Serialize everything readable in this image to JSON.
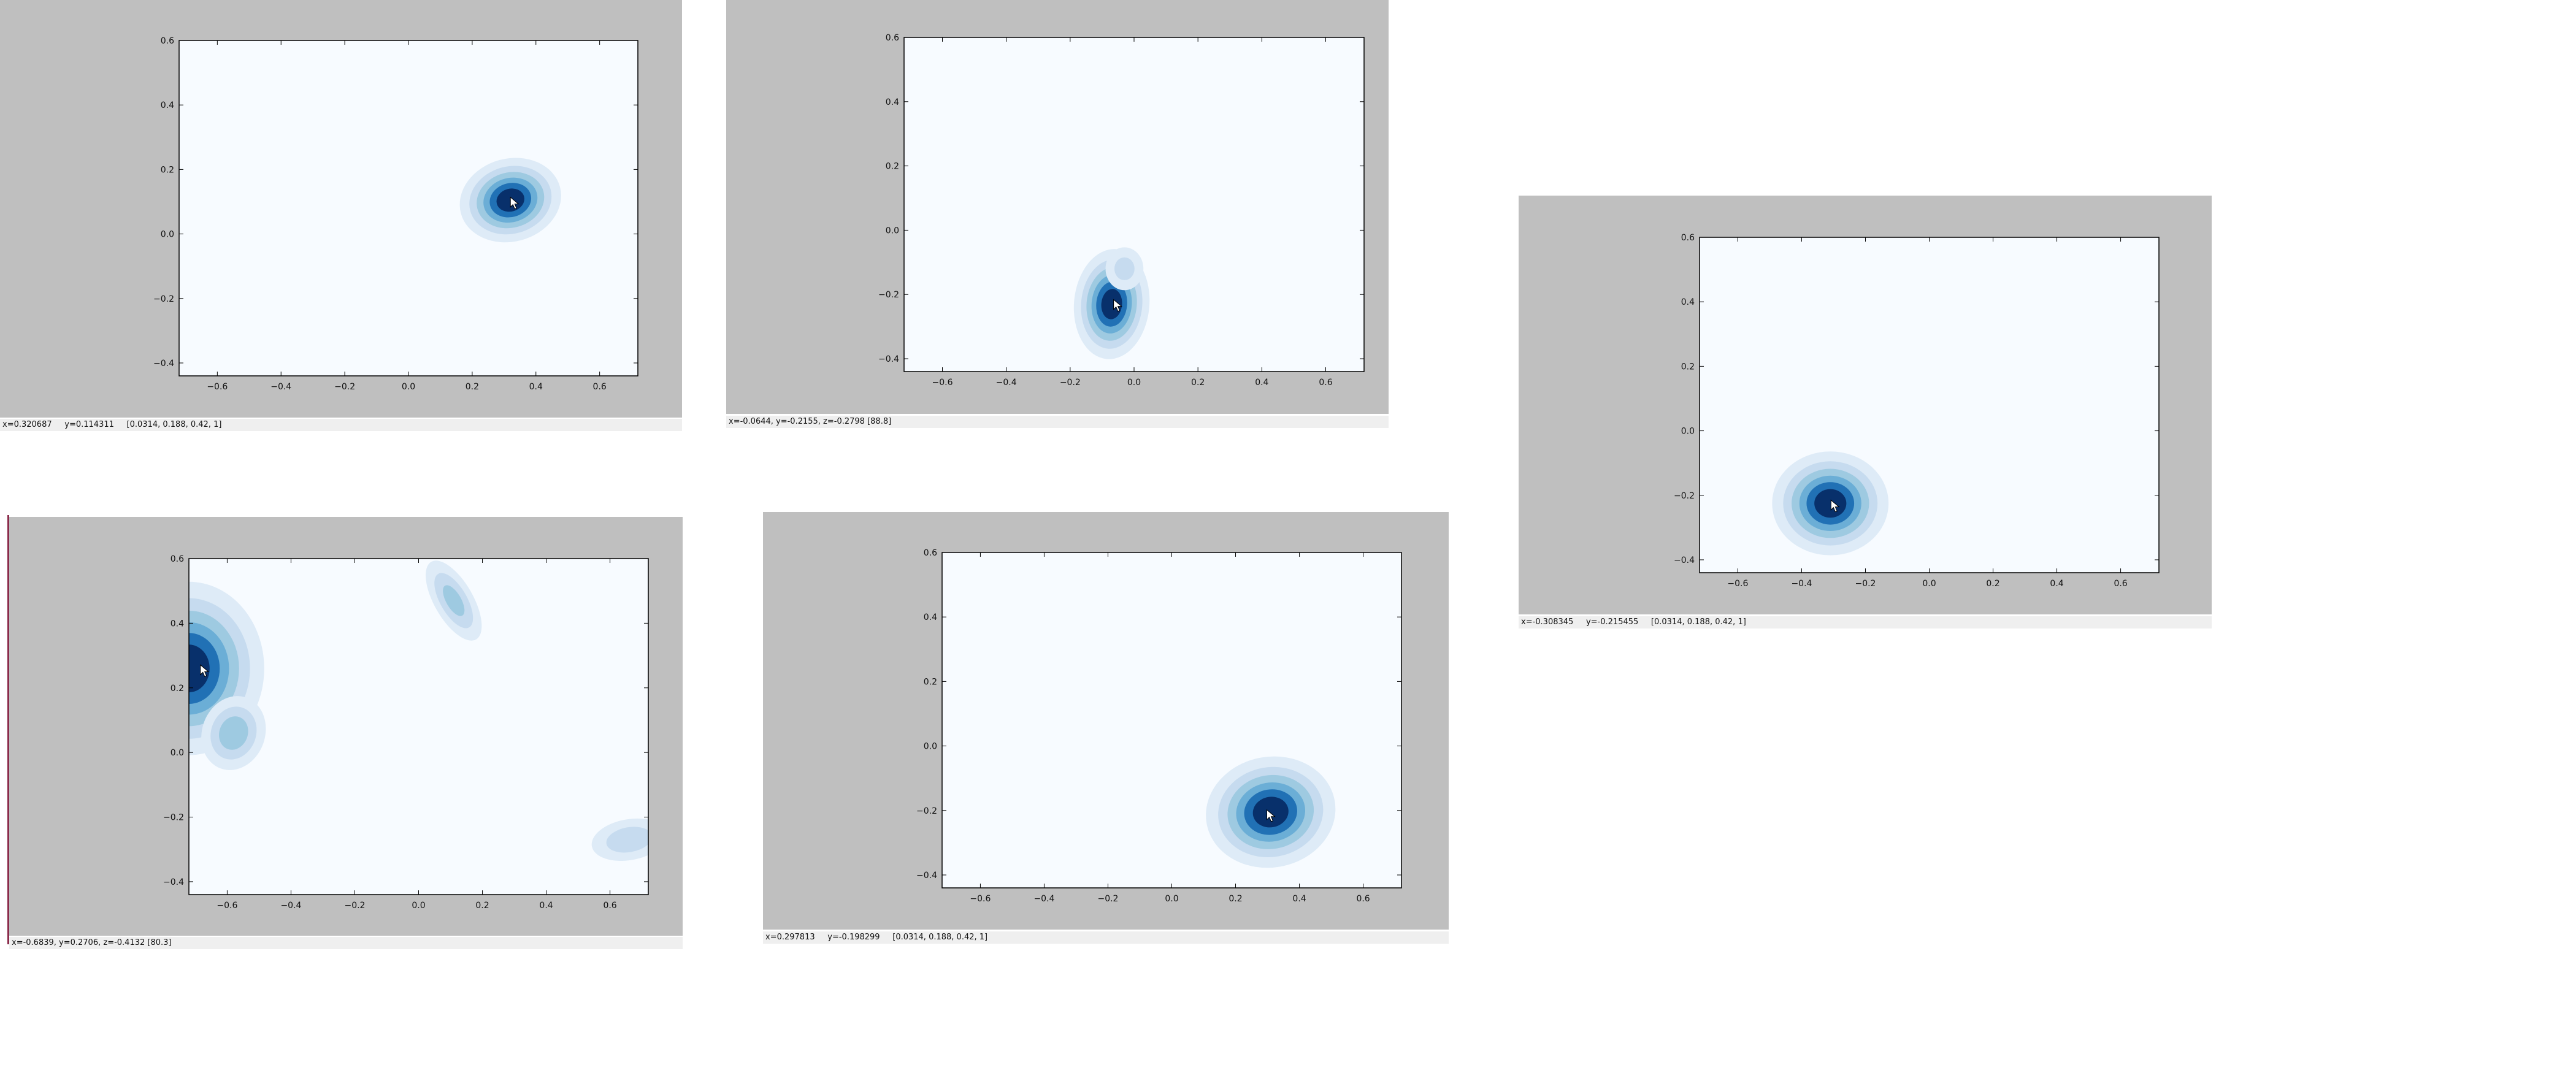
{
  "colors": {
    "panel_background": "#bfbfbf",
    "plot_background": "#f7fbff",
    "status_background": "#efefef",
    "contour_levels": [
      "#deebf7",
      "#c6dbef",
      "#9ecae1",
      "#6baed6",
      "#2171b5",
      "#08306b"
    ]
  },
  "icon_names": [
    "mouse-cursor-icon"
  ],
  "chart_data": [
    {
      "type": "contour",
      "colormap": "Blues",
      "grid": false,
      "xlim": [
        -0.72,
        0.72
      ],
      "ylim": [
        -0.44,
        0.6
      ],
      "xticks": [
        "−0.6",
        "−0.4",
        "−0.2",
        "0.0",
        "0.2",
        "0.4",
        "0.6"
      ],
      "yticks": [
        "−0.4",
        "−0.2",
        "0.0",
        "0.2",
        "0.4",
        "0.6"
      ],
      "blobs": [
        {
          "cx": 0.32,
          "cy": 0.105,
          "sx": 0.15,
          "sy": 0.12,
          "rot": -15,
          "peak": 1.0
        }
      ],
      "cursor": {
        "x": 0.32,
        "y": 0.114
      },
      "status": "x=0.320687     y=0.114311     [0.0314, 0.188, 0.42, 1]"
    },
    {
      "type": "contour",
      "colormap": "Blues",
      "grid": false,
      "xlim": [
        -0.72,
        0.72
      ],
      "ylim": [
        -0.44,
        0.6
      ],
      "xticks": [
        "−0.6",
        "−0.4",
        "−0.2",
        "0.0",
        "0.2",
        "0.4",
        "0.6"
      ],
      "yticks": [
        "−0.4",
        "−0.2",
        "0.0",
        "0.2",
        "0.4",
        "0.6"
      ],
      "blobs": [
        {
          "cx": -0.07,
          "cy": -0.23,
          "sx": 0.11,
          "sy": 0.16,
          "rot": 5,
          "peak": 1.0
        },
        {
          "cx": -0.03,
          "cy": -0.12,
          "sx": 0.08,
          "sy": 0.09,
          "rot": 0,
          "peak": 0.3
        }
      ],
      "cursor": {
        "x": -0.064,
        "y": -0.216
      },
      "status": "x=-0.0644, y=-0.2155, z=-0.2798 [88.8]"
    },
    {
      "type": "contour",
      "colormap": "Blues",
      "grid": false,
      "xlim": [
        -0.72,
        0.72
      ],
      "ylim": [
        -0.44,
        0.6
      ],
      "xticks": [
        "−0.6",
        "−0.4",
        "−0.2",
        "0.0",
        "0.2",
        "0.4",
        "0.6"
      ],
      "yticks": [
        "−0.4",
        "−0.2",
        "0.0",
        "0.2",
        "0.4",
        "0.6"
      ],
      "blobs": [
        {
          "cx": -0.31,
          "cy": -0.225,
          "sx": 0.17,
          "sy": 0.15,
          "rot": 0,
          "peak": 1.0
        }
      ],
      "cursor": {
        "x": -0.308,
        "y": -0.215
      },
      "status": "x=-0.308345     y=-0.215455     [0.0314, 0.188, 0.42, 1]"
    },
    {
      "type": "contour",
      "colormap": "Blues",
      "grid": false,
      "xlim": [
        -0.72,
        0.72
      ],
      "ylim": [
        -0.44,
        0.6
      ],
      "xticks": [
        "−0.6",
        "−0.4",
        "−0.2",
        "0.0",
        "0.2",
        "0.4",
        "0.6"
      ],
      "yticks": [
        "−0.4",
        "−0.2",
        "0.0",
        "0.2",
        "0.4",
        "0.6"
      ],
      "blobs": [
        {
          "cx": -0.72,
          "cy": 0.26,
          "sx": 0.22,
          "sy": 0.25,
          "rot": 0,
          "peak": 1.0
        },
        {
          "cx": -0.58,
          "cy": 0.06,
          "sx": 0.11,
          "sy": 0.13,
          "rot": 20,
          "peak": 0.5
        },
        {
          "cx": 0.11,
          "cy": 0.47,
          "sx": 0.07,
          "sy": 0.16,
          "rot": -30,
          "peak": 0.45
        },
        {
          "cx": 0.66,
          "cy": -0.27,
          "sx": 0.15,
          "sy": 0.08,
          "rot": -10,
          "peak": 0.35
        }
      ],
      "cursor": {
        "x": -0.684,
        "y": 0.271
      },
      "status": "x=-0.6839, y=0.2706, z=-0.4132 [80.3]"
    },
    {
      "type": "contour",
      "colormap": "Blues",
      "grid": false,
      "xlim": [
        -0.72,
        0.72
      ],
      "ylim": [
        -0.44,
        0.6
      ],
      "xticks": [
        "−0.6",
        "−0.4",
        "−0.2",
        "0.0",
        "0.2",
        "0.4",
        "0.6"
      ],
      "yticks": [
        "−0.4",
        "−0.2",
        "0.0",
        "0.2",
        "0.4",
        "0.6"
      ],
      "blobs": [
        {
          "cx": 0.31,
          "cy": -0.205,
          "sx": 0.19,
          "sy": 0.16,
          "rot": -10,
          "peak": 1.0
        }
      ],
      "cursor": {
        "x": 0.298,
        "y": -0.198
      },
      "status": "x=0.297813     y=-0.198299     [0.0314, 0.188, 0.42, 1]"
    }
  ]
}
